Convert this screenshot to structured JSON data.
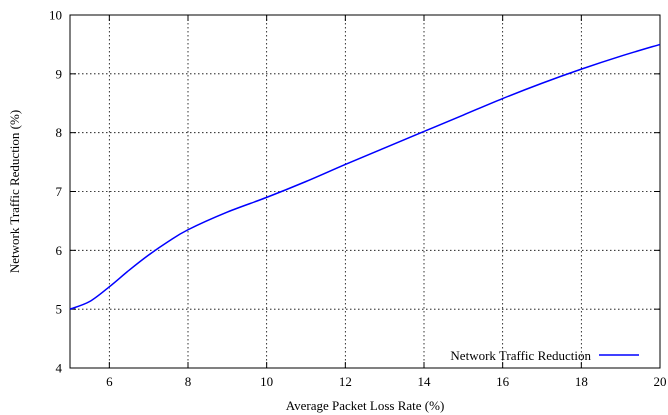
{
  "chart_data": {
    "type": "line",
    "title": "",
    "xlabel": "Average Packet Loss Rate (%)",
    "ylabel": "Network Traffic Reduction (%)",
    "xlim": [
      5,
      20
    ],
    "ylim": [
      4,
      10
    ],
    "x_ticks": [
      6,
      8,
      10,
      12,
      14,
      16,
      18,
      20
    ],
    "y_ticks": [
      4,
      5,
      6,
      7,
      8,
      9,
      10
    ],
    "grid": true,
    "legend_position": "bottom-right",
    "series": [
      {
        "name": "Network Traffic Reduction",
        "color": "#0000ff",
        "x": [
          5,
          5.5,
          6,
          6.5,
          7,
          7.5,
          8,
          9,
          10,
          11,
          12,
          13,
          14,
          15,
          16,
          17,
          18,
          19,
          20
        ],
        "y": [
          5.0,
          5.13,
          5.38,
          5.66,
          5.92,
          6.15,
          6.35,
          6.65,
          6.9,
          7.17,
          7.46,
          7.74,
          8.02,
          8.3,
          8.58,
          8.84,
          9.08,
          9.3,
          9.5
        ]
      }
    ]
  }
}
